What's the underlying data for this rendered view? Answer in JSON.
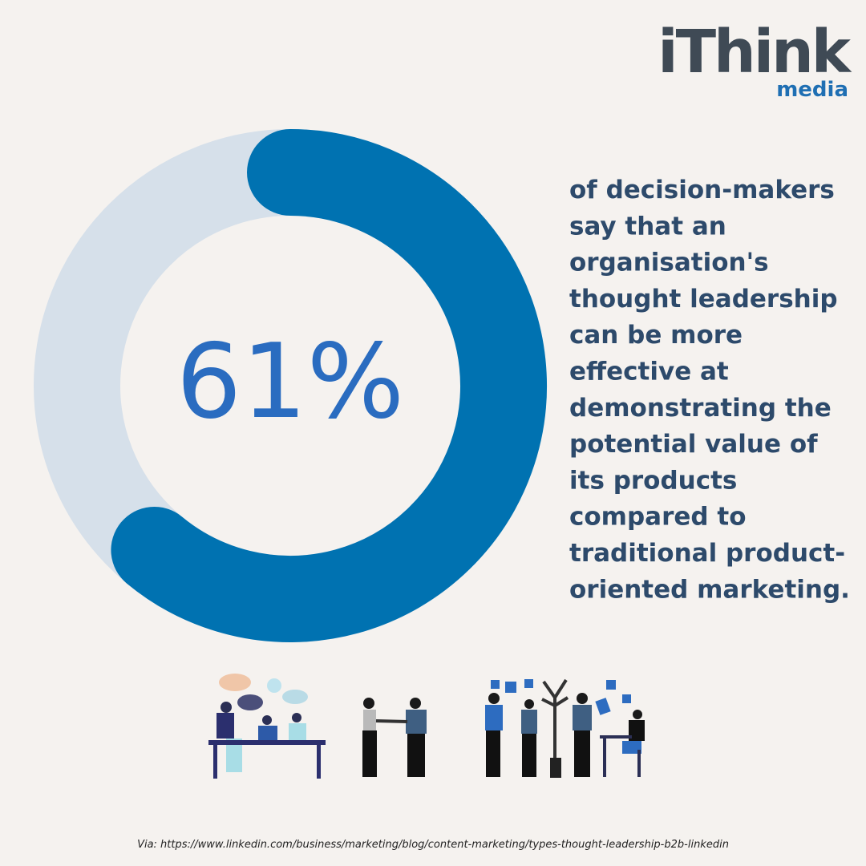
{
  "chart_data": {
    "type": "donut",
    "values": [
      61
    ],
    "value_labels": [
      "61%"
    ],
    "max": 100,
    "color": "#0072b1",
    "track_color": "#d6e0ea",
    "description_lines": [
      "of decision-makers",
      "say that an",
      "organisation's",
      "thought leadership",
      "can be more",
      "effective at",
      "demonstrating the",
      "potential value of",
      "its products",
      "compared to",
      "traditional product-",
      "oriented marketing."
    ],
    "source": "Via: https://www.linkedin.com/business/marketing/blog/content-marketing/types-thought-leadership-b2b-linkedin"
  },
  "logo": {
    "brand": "iThink",
    "sub": "media"
  }
}
